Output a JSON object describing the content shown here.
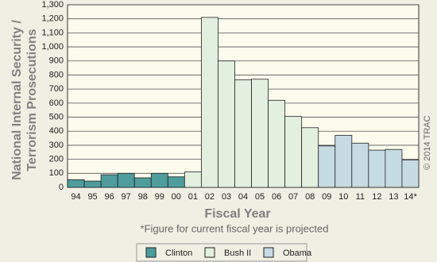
{
  "chart_data": {
    "type": "bar",
    "ylabel": [
      "National Internal Security /",
      "Terrorism Prosecutions"
    ],
    "xlabel": "Fiscal Year",
    "note": "*Figure for current fiscal year is projected",
    "copyright": "© 2014 TRAC",
    "categories": [
      "94",
      "95",
      "96",
      "97",
      "98",
      "99",
      "00",
      "01",
      "02",
      "03",
      "04",
      "05",
      "06",
      "07",
      "08",
      "09",
      "10",
      "11",
      "12",
      "13",
      "14*"
    ],
    "series": [
      {
        "name": "Clinton",
        "color": "#4e9c9c",
        "values": [
          55,
          45,
          90,
          100,
          68,
          100,
          75,
          null,
          null,
          null,
          null,
          null,
          null,
          null,
          null,
          null,
          null,
          null,
          null,
          null,
          null
        ]
      },
      {
        "name": "Bush II",
        "color": "#e3efdf",
        "values": [
          null,
          null,
          null,
          null,
          null,
          null,
          null,
          110,
          1210,
          900,
          765,
          770,
          620,
          505,
          425,
          null,
          null,
          null,
          null,
          null,
          null
        ]
      },
      {
        "name": "Obama",
        "color": "#c6dbe2",
        "values": [
          null,
          null,
          null,
          null,
          null,
          null,
          null,
          null,
          null,
          null,
          null,
          null,
          null,
          null,
          null,
          295,
          370,
          315,
          265,
          270,
          195
        ]
      }
    ],
    "ylim": [
      0,
      1300
    ],
    "yticks": [
      0,
      100,
      200,
      300,
      400,
      500,
      600,
      700,
      800,
      900,
      {
        "value": 1000,
        "label": "1,000"
      },
      {
        "value": 1100,
        "label": "1,100"
      },
      {
        "value": 1200,
        "label": "1,200"
      },
      {
        "value": 1300,
        "label": "1,300"
      }
    ],
    "grid": true
  }
}
